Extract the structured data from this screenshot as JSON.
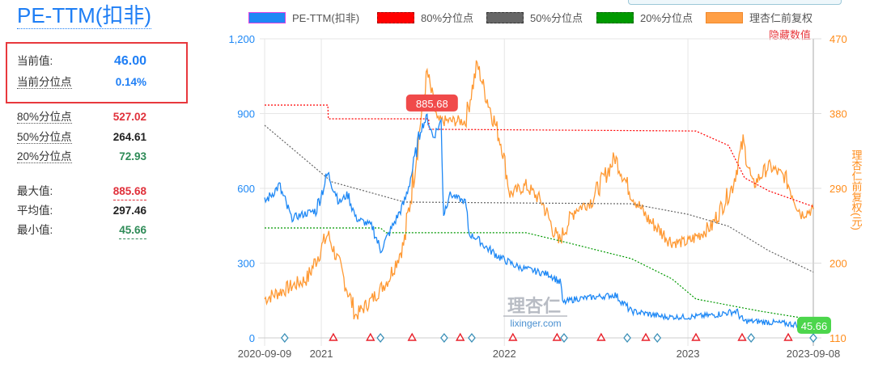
{
  "panel": {
    "title": "PE-TTM(扣非)",
    "current": {
      "label": "当前值:",
      "value": "46.00"
    },
    "current_pct": {
      "label": "当前分位点",
      "value": "0.14%"
    },
    "p80": {
      "label": "80%分位点",
      "value": "527.02"
    },
    "p50": {
      "label": "50%分位点",
      "value": "264.61"
    },
    "p20": {
      "label": "20%分位点",
      "value": "72.93"
    },
    "max": {
      "label": "最大值:",
      "value": "885.68"
    },
    "avg": {
      "label": "平均值:",
      "value": "297.46"
    },
    "min": {
      "label": "最小值:",
      "value": "45.66"
    }
  },
  "hide_values_label": "隐藏数值",
  "watermark": {
    "logo": "理杏仁",
    "site": "lixinger.com"
  },
  "colors": {
    "pe": "#1e88f5",
    "p80": "#ff0000",
    "p50": "#666666",
    "p20": "#009900",
    "price": "#ff9933",
    "blue_text": "#1e7ef5",
    "red_text": "#e0303a",
    "green_text": "#2e8b57"
  },
  "chart_data": {
    "type": "line",
    "start_date": "2020-09-09",
    "end_date": "2023-09-08",
    "x_unit": "days since start",
    "legend": [
      "PE-TTM(扣非)",
      "80%分位点",
      "50%分位点",
      "20%分位点",
      "理杏仁前复权"
    ],
    "legend_position": "top",
    "x_ticks": [
      {
        "day": 0,
        "label": "2020-09-09"
      },
      {
        "day": 113,
        "label": "2021"
      },
      {
        "day": 478,
        "label": "2022"
      },
      {
        "day": 844,
        "label": "2023"
      },
      {
        "day": 1094,
        "label": "2023-09-08"
      }
    ],
    "y_left": {
      "range": [
        0,
        1200
      ],
      "ticks": [
        "0",
        "300",
        "600",
        "900",
        "1,200"
      ],
      "tick_values": [
        0,
        300,
        600,
        900,
        1200
      ]
    },
    "y_right": {
      "label": "理杏仁前复权(元)",
      "range": [
        110,
        470
      ],
      "ticks": [
        "110",
        "200",
        "290",
        "380",
        "470"
      ],
      "tick_values": [
        110,
        200,
        290,
        380,
        470
      ]
    },
    "grid": true,
    "series": [
      {
        "name": "PE-TTM(扣非)",
        "axis": "left",
        "points": [
          [
            0,
            545
          ],
          [
            29,
            610
          ],
          [
            53,
            480
          ],
          [
            102,
            512
          ],
          [
            126,
            658
          ],
          [
            150,
            545
          ],
          [
            166,
            577
          ],
          [
            182,
            480
          ],
          [
            215,
            448
          ],
          [
            231,
            350
          ],
          [
            247,
            415
          ],
          [
            263,
            480
          ],
          [
            279,
            545
          ],
          [
            295,
            675
          ],
          [
            311,
            837
          ],
          [
            324,
            886
          ],
          [
            336,
            805
          ],
          [
            352,
            870
          ],
          [
            357,
            496
          ],
          [
            368,
            577
          ],
          [
            384,
            561
          ],
          [
            400,
            545
          ],
          [
            408,
            415
          ],
          [
            424,
            399
          ],
          [
            440,
            366
          ],
          [
            473,
            318
          ],
          [
            505,
            285
          ],
          [
            537,
            269
          ],
          [
            570,
            253
          ],
          [
            591,
            220
          ],
          [
            594,
            140
          ],
          [
            618,
            156
          ],
          [
            650,
            162
          ],
          [
            699,
            172
          ],
          [
            715,
            140
          ],
          [
            731,
            107
          ],
          [
            763,
            97
          ],
          [
            796,
            84
          ],
          [
            844,
            84
          ],
          [
            892,
            91
          ],
          [
            941,
            107
          ],
          [
            954,
            68
          ],
          [
            989,
            65
          ],
          [
            1038,
            58
          ],
          [
            1094,
            46
          ]
        ]
      },
      {
        "name": "80%分位点",
        "axis": "left",
        "points": [
          [
            0,
            934
          ],
          [
            126,
            934
          ],
          [
            127,
            879
          ],
          [
            327,
            879
          ],
          [
            328,
            837
          ],
          [
            860,
            830
          ],
          [
            925,
            772
          ],
          [
            957,
            642
          ],
          [
            1005,
            590
          ],
          [
            1094,
            527
          ]
        ]
      },
      {
        "name": "50%分位点",
        "axis": "left",
        "points": [
          [
            0,
            853
          ],
          [
            134,
            626
          ],
          [
            279,
            545
          ],
          [
            731,
            538
          ],
          [
            844,
            496
          ],
          [
            925,
            448
          ],
          [
            1005,
            350
          ],
          [
            1094,
            264
          ]
        ]
      },
      {
        "name": "20%分位点",
        "axis": "left",
        "points": [
          [
            0,
            441
          ],
          [
            231,
            441
          ],
          [
            242,
            422
          ],
          [
            521,
            422
          ],
          [
            602,
            383
          ],
          [
            731,
            318
          ],
          [
            812,
            237
          ],
          [
            860,
            156
          ],
          [
            989,
            107
          ],
          [
            1094,
            73
          ]
        ]
      },
      {
        "name": "理杏仁前复权",
        "axis": "right",
        "points": [
          [
            0,
            157
          ],
          [
            85,
            181
          ],
          [
            126,
            235
          ],
          [
            150,
            196
          ],
          [
            182,
            137
          ],
          [
            215,
            157
          ],
          [
            247,
            181
          ],
          [
            279,
            225
          ],
          [
            311,
            371
          ],
          [
            324,
            429
          ],
          [
            344,
            371
          ],
          [
            376,
            371
          ],
          [
            400,
            371
          ],
          [
            424,
            439
          ],
          [
            440,
            405
          ],
          [
            473,
            342
          ],
          [
            489,
            283
          ],
          [
            521,
            293
          ],
          [
            553,
            274
          ],
          [
            586,
            225
          ],
          [
            618,
            264
          ],
          [
            650,
            274
          ],
          [
            699,
            327
          ],
          [
            731,
            283
          ],
          [
            763,
            254
          ],
          [
            812,
            225
          ],
          [
            844,
            225
          ],
          [
            892,
            245
          ],
          [
            933,
            293
          ],
          [
            954,
            346
          ],
          [
            973,
            293
          ],
          [
            1005,
            317
          ],
          [
            1038,
            303
          ],
          [
            1070,
            259
          ],
          [
            1094,
            265
          ]
        ]
      }
    ],
    "event_markers": {
      "diamond": [
        40,
        231,
        358,
        413,
        597,
        723,
        783,
        970,
        1094
      ],
      "triangle": [
        137,
        211,
        294,
        390,
        495,
        583,
        671,
        760,
        860,
        952,
        1044
      ]
    },
    "annotations": [
      {
        "text": "885.68",
        "day": 324,
        "value": 885.68,
        "type": "max"
      },
      {
        "text": "45.66",
        "day": 1094,
        "value": 45.66,
        "type": "min"
      }
    ]
  }
}
